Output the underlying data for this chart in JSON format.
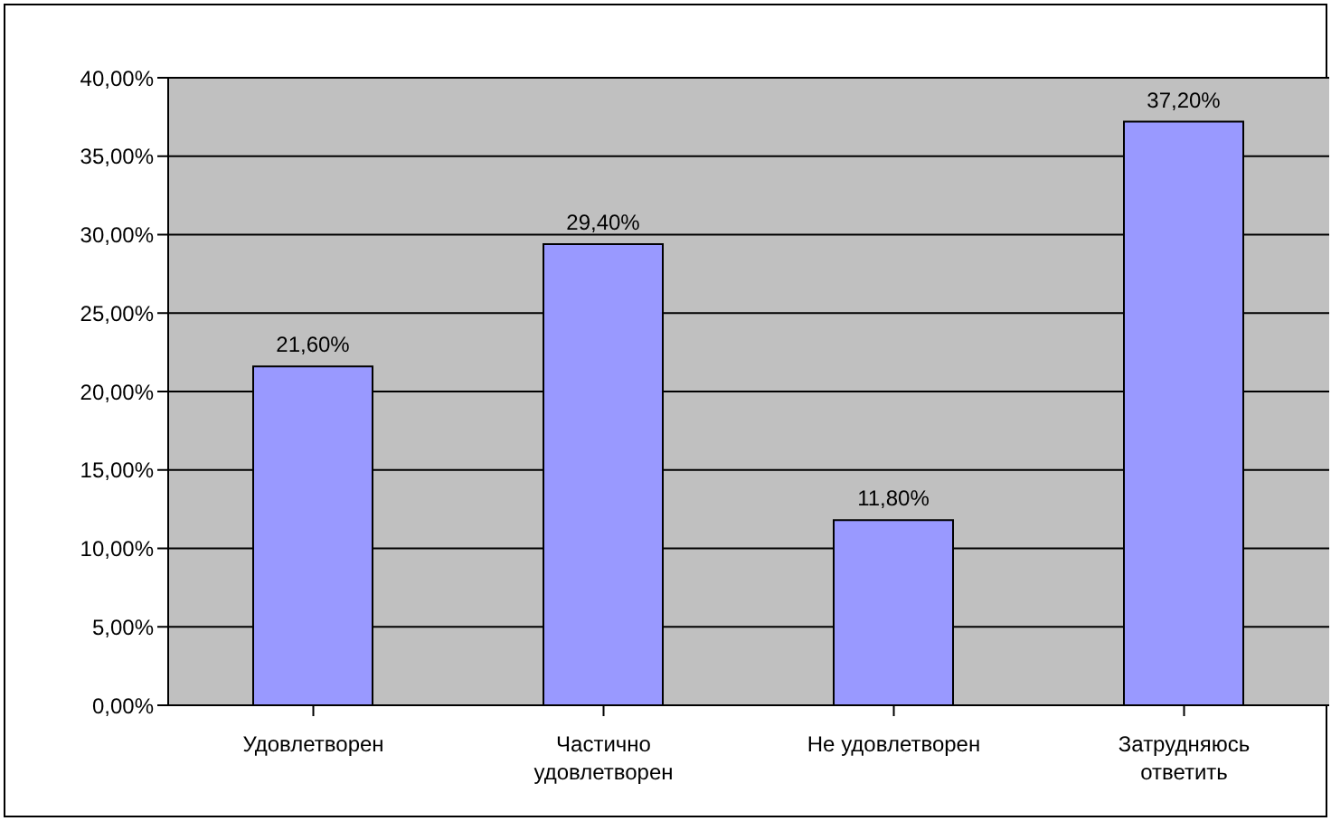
{
  "chart_data": {
    "type": "bar",
    "categories": [
      "Удовлетворен",
      "Частично удовлетворен",
      "Не удовлетворен",
      "Затрудняюсь ответить"
    ],
    "values": [
      21.6,
      29.4,
      11.8,
      37.2
    ],
    "color": "#9999ff",
    "value_labels": [
      "21,60%",
      "29,40%",
      "11,80%",
      "37,20%"
    ],
    "ylim": [
      0,
      40
    ],
    "yticks": [
      {
        "value": 0,
        "label": "0,00%"
      },
      {
        "value": 5,
        "label": "5,00%"
      },
      {
        "value": 10,
        "label": "10,00%"
      },
      {
        "value": 15,
        "label": "15,00%"
      },
      {
        "value": 20,
        "label": "20,00%"
      },
      {
        "value": 25,
        "label": "25,00%"
      },
      {
        "value": 30,
        "label": "30,00%"
      },
      {
        "value": 35,
        "label": "35,00%"
      },
      {
        "value": 40,
        "label": "40,00%"
      }
    ],
    "grid": "y",
    "legend": false
  }
}
